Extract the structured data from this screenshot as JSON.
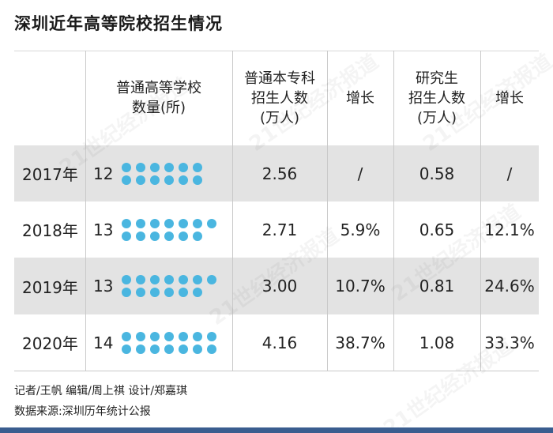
{
  "title": "深圳近年高等院校招生情况",
  "colors": {
    "dot": "#4ab6e0",
    "shade": "#e3e3e3",
    "bar": "#3a5d8f"
  },
  "headers": {
    "schools": [
      "普通高等学校",
      "数量(所)"
    ],
    "undergrad": [
      "普通本专科",
      "招生人数",
      "(万人)"
    ],
    "undergrad_growth": [
      "增长"
    ],
    "grad": [
      "研究生",
      "招生人数",
      "(万人)"
    ],
    "grad_growth": [
      "增长"
    ]
  },
  "chart_data": {
    "type": "table",
    "title": "深圳近年高等院校招生情况",
    "rows": [
      {
        "year": "2017年",
        "schools": "12",
        "schools_n": 12,
        "undergrad": "2.56",
        "undergrad_growth": "/",
        "grad": "0.58",
        "grad_growth": "/"
      },
      {
        "year": "2018年",
        "schools": "13",
        "schools_n": 13,
        "undergrad": "2.71",
        "undergrad_growth": "5.9%",
        "grad": "0.65",
        "grad_growth": "12.1%"
      },
      {
        "year": "2019年",
        "schools": "13",
        "schools_n": 13,
        "undergrad": "3.00",
        "undergrad_growth": "10.7%",
        "grad": "0.81",
        "grad_growth": "24.6%"
      },
      {
        "year": "2020年",
        "schools": "14",
        "schools_n": 14,
        "undergrad": "4.16",
        "undergrad_growth": "38.7%",
        "grad": "1.08",
        "grad_growth": "33.3%"
      }
    ]
  },
  "footer": {
    "credits": "记者/王帆   编辑/周上祺   设计/郑嘉琪",
    "source": "数据来源:深圳历年统计公报"
  },
  "watermark": "21世纪经济报道"
}
